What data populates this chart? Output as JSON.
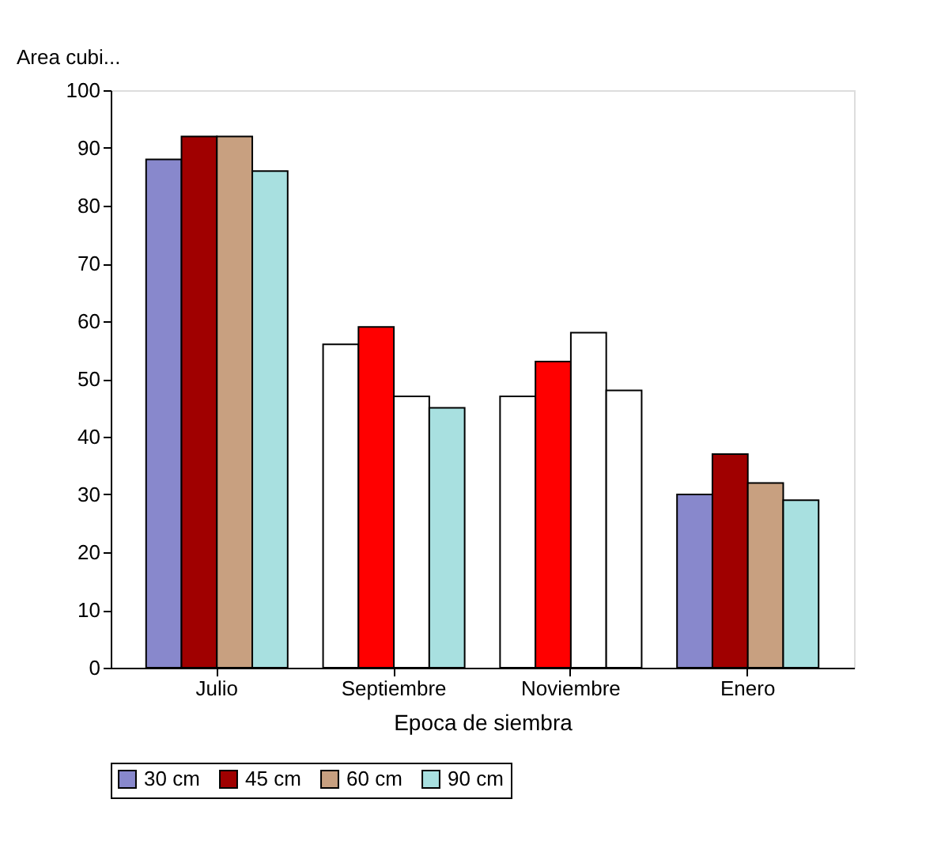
{
  "chart_data": {
    "type": "bar",
    "xlabel": "Epoca de siembra",
    "ylabel": "Area cubi...",
    "categories": [
      "Julio",
      "Septiembre",
      "Noviembre",
      "Enero"
    ],
    "series": [
      {
        "name": "30 cm",
        "color": "#8888cc",
        "colors": [
          "#8888cc",
          "#ffffff",
          "#ffffff",
          "#8888cc"
        ],
        "values": [
          88,
          56,
          47,
          30
        ]
      },
      {
        "name": "45 cm",
        "color": "#a00000",
        "colors": [
          "#a00000",
          "#ff0000",
          "#ff0000",
          "#a00000"
        ],
        "values": [
          92,
          59,
          53,
          37
        ]
      },
      {
        "name": "60 cm",
        "color": "#c8a080",
        "colors": [
          "#c8a080",
          "#ffffff",
          "#ffffff",
          "#c8a080"
        ],
        "values": [
          92,
          47,
          58,
          32
        ]
      },
      {
        "name": "90 cm",
        "color": "#a8e0e0",
        "colors": [
          "#a8e0e0",
          "#a8e0e0",
          "#ffffff",
          "#a8e0e0"
        ],
        "values": [
          86,
          45,
          48,
          29
        ]
      }
    ],
    "ylim": [
      0,
      100
    ],
    "yticks": [
      0,
      10,
      20,
      30,
      40,
      50,
      60,
      70,
      80,
      90,
      100
    ],
    "grid": false,
    "legend": "bottom"
  }
}
